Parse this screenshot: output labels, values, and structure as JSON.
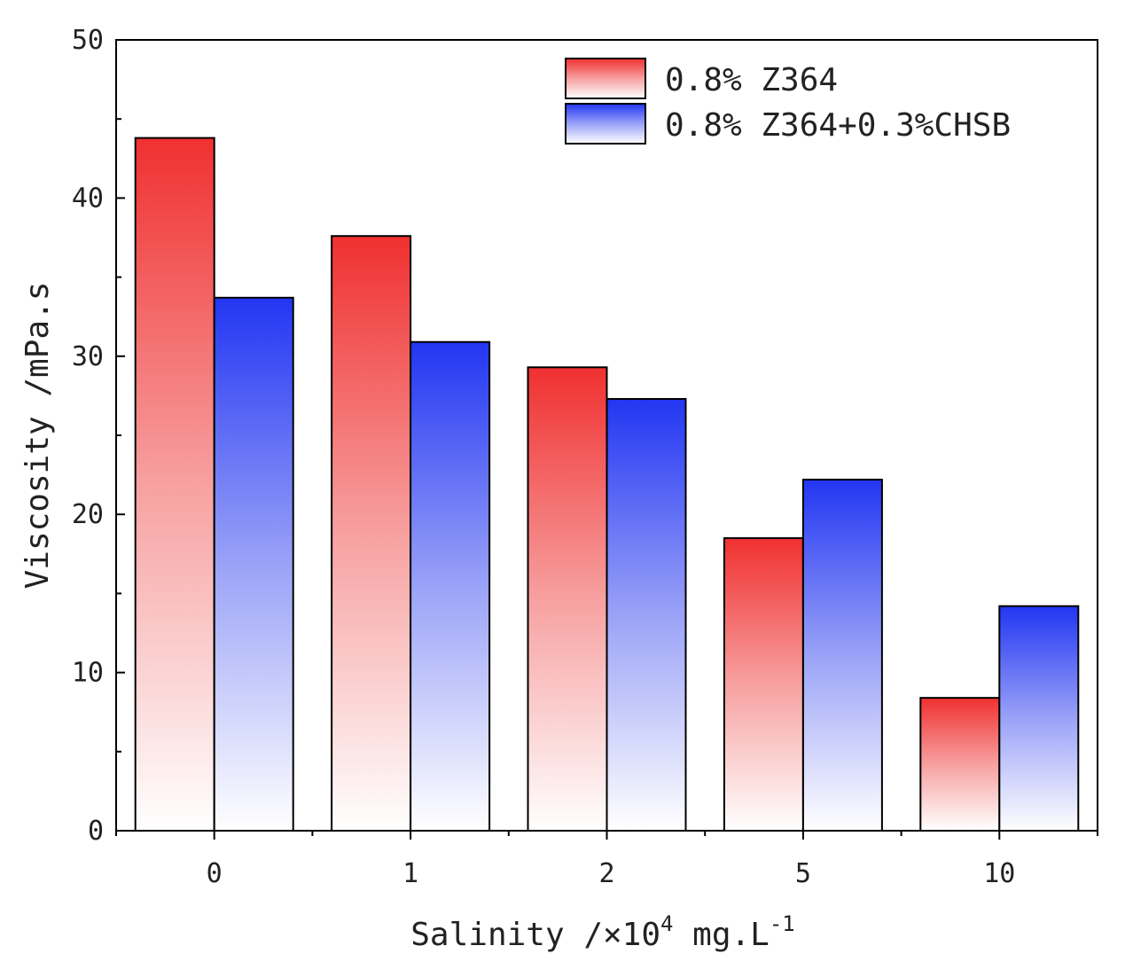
{
  "chart_data": {
    "type": "bar",
    "title": "",
    "xlabel": {
      "base": "Salinity /×10",
      "sup": "4",
      "unit_base": " mg.L",
      "unit_sup": "-1"
    },
    "ylabel": "Viscosity /mPa.s",
    "categories": [
      "0",
      "1",
      "2",
      "5",
      "10"
    ],
    "ylim": [
      0,
      50
    ],
    "yticks": [
      "0",
      "10",
      "20",
      "30",
      "40",
      "50"
    ],
    "series": [
      {
        "name": "0.8% Z364",
        "values": [
          43.8,
          37.6,
          29.3,
          18.5,
          8.4
        ],
        "color": "#ee2a2a"
      },
      {
        "name": "0.8% Z364+0.3%CHSB",
        "values": [
          33.7,
          30.9,
          27.3,
          22.2,
          14.2
        ],
        "color": "#2a3cf0"
      }
    ],
    "legend_position": "top-right"
  }
}
